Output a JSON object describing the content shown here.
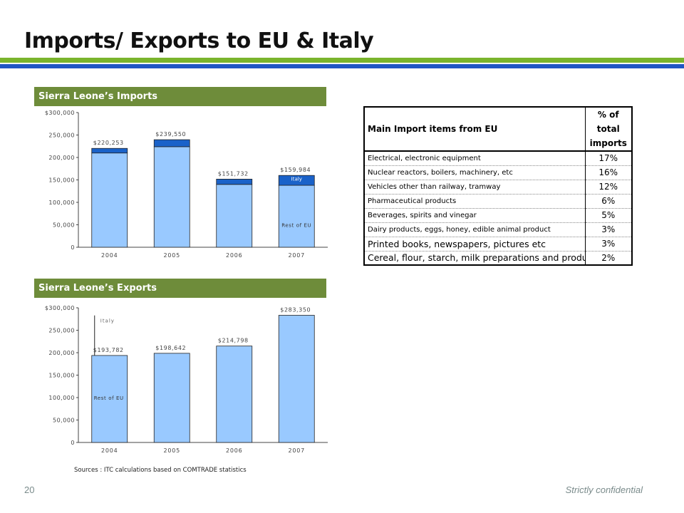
{
  "slide": {
    "title": "Imports/ Exports to EU & Italy",
    "page_number": "20",
    "confidential": "Strictly confidential",
    "sources": "Sources : ITC calculations based on COMTRADE statistics"
  },
  "colors": {
    "green_rule": "#7ab42c",
    "blue_rule": "#1f56c4",
    "header_bg": "#6e8c3a",
    "rest_of_eu": "#99c9ff",
    "italy": "#1a62c9"
  },
  "chart_data": [
    {
      "type": "bar",
      "title": "Sierra Leone’s Imports",
      "categories": [
        "2004",
        "2005",
        "2006",
        "2007"
      ],
      "series": [
        {
          "name": "Rest of EU",
          "values": [
            210000,
            224000,
            140000,
            138000
          ]
        },
        {
          "name": "Italy",
          "values": [
            10253,
            15550,
            11732,
            21984
          ]
        }
      ],
      "total_labels": [
        "$220,253",
        "$239,550",
        "$151,732",
        "$159,984"
      ],
      "yticks": [
        "$300,000",
        "250,000",
        "200,000",
        "150,000",
        "100,000",
        "50,000",
        "0"
      ],
      "ylim": [
        0,
        300000
      ],
      "grid": false
    },
    {
      "type": "bar",
      "title": "Sierra Leone’s Exports",
      "categories": [
        "2004",
        "2005",
        "2006",
        "2007"
      ],
      "series": [
        {
          "name": "Rest of EU",
          "values": [
            193782,
            198642,
            214798,
            283350
          ]
        },
        {
          "name": "Italy",
          "values": [
            0,
            0,
            0,
            0
          ]
        }
      ],
      "total_labels": [
        "$193,782",
        "$198,642",
        "$214,798",
        "$283,350"
      ],
      "annotation": "Italy",
      "yticks": [
        "$300,000",
        "250,000",
        "200,000",
        "150,000",
        "100,000",
        "50,000",
        "0"
      ],
      "ylim": [
        0,
        300000
      ],
      "grid": false
    }
  ],
  "table": {
    "header_item": "Main Import items from EU",
    "header_pct": "% of total imports",
    "rows": [
      {
        "item": "Electrical, electronic equipment",
        "pct": "17%"
      },
      {
        "item": "Nuclear reactors, boilers, machinery, etc",
        "pct": "16%"
      },
      {
        "item": "Vehicles other than railway, tramway",
        "pct": "12%"
      },
      {
        "item": "Pharmaceutical products",
        "pct": "6%"
      },
      {
        "item": "Beverages, spirits and vinegar",
        "pct": "5%"
      },
      {
        "item": "Dairy products, eggs, honey, edible animal product",
        "pct": "3%"
      },
      {
        "item": "Printed books, newspapers, pictures etc",
        "pct": "3%"
      },
      {
        "item": "Cereal, flour, starch, milk preparations and produc",
        "pct": "2%"
      }
    ]
  }
}
